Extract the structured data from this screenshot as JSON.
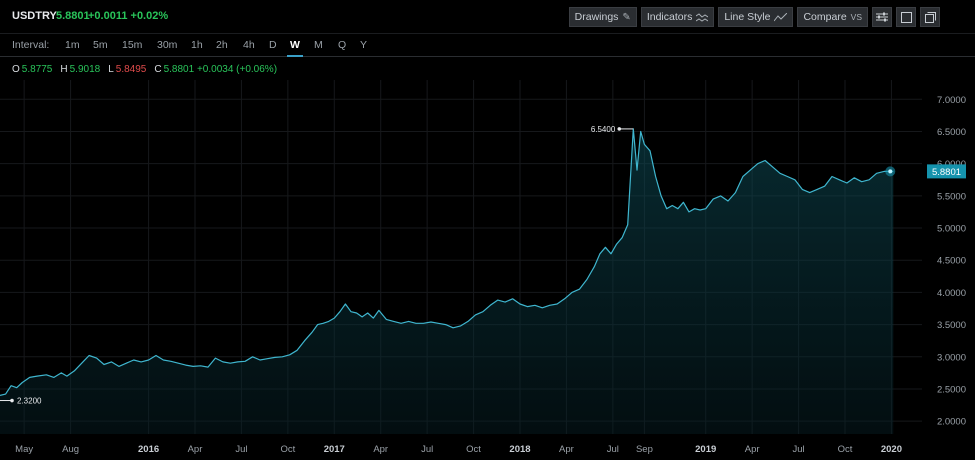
{
  "header": {
    "symbol": "USDTRY",
    "price": "5.8801",
    "change": "+0.0011 +0.02%",
    "buttons": {
      "drawings": "Drawings",
      "indicators": "Indicators",
      "line_style": "Line Style",
      "compare": "Compare",
      "compare_suffix": "VS"
    }
  },
  "intervals": {
    "label": "Interval:",
    "items": [
      "1m",
      "5m",
      "15m",
      "30m",
      "1h",
      "2h",
      "4h",
      "D",
      "W",
      "M",
      "Q",
      "Y"
    ],
    "active": "W"
  },
  "ohlc": {
    "o_label": "O",
    "o": "5.8775",
    "h_label": "H",
    "h": "5.9018",
    "l_label": "L",
    "l": "5.8495",
    "c_label": "C",
    "c": "5.8801",
    "change": "+0.0034 (+0.06%)"
  },
  "colors": {
    "line": "#3fb6cf",
    "price_tag": "#1593ad",
    "up": "#29c45a",
    "down": "#e04b4b"
  },
  "chart_data": {
    "type": "area",
    "series": [
      {
        "values": [
          [
            2015.2,
            2.4
          ],
          [
            2015.23,
            2.42
          ],
          [
            2015.26,
            2.55
          ],
          [
            2015.29,
            2.52
          ],
          [
            2015.32,
            2.6
          ],
          [
            2015.36,
            2.68
          ],
          [
            2015.4,
            2.7
          ],
          [
            2015.45,
            2.72
          ],
          [
            2015.49,
            2.68
          ],
          [
            2015.53,
            2.75
          ],
          [
            2015.56,
            2.7
          ],
          [
            2015.6,
            2.78
          ],
          [
            2015.64,
            2.9
          ],
          [
            2015.68,
            3.02
          ],
          [
            2015.72,
            2.98
          ],
          [
            2015.76,
            2.88
          ],
          [
            2015.8,
            2.92
          ],
          [
            2015.84,
            2.85
          ],
          [
            2015.88,
            2.9
          ],
          [
            2015.92,
            2.95
          ],
          [
            2015.96,
            2.92
          ],
          [
            2016.0,
            2.95
          ],
          [
            2016.04,
            3.02
          ],
          [
            2016.08,
            2.95
          ],
          [
            2016.12,
            2.93
          ],
          [
            2016.16,
            2.9
          ],
          [
            2016.2,
            2.87
          ],
          [
            2016.24,
            2.85
          ],
          [
            2016.28,
            2.86
          ],
          [
            2016.32,
            2.84
          ],
          [
            2016.36,
            2.98
          ],
          [
            2016.4,
            2.92
          ],
          [
            2016.44,
            2.9
          ],
          [
            2016.48,
            2.92
          ],
          [
            2016.52,
            2.93
          ],
          [
            2016.56,
            3.0
          ],
          [
            2016.6,
            2.95
          ],
          [
            2016.64,
            2.97
          ],
          [
            2016.68,
            2.99
          ],
          [
            2016.72,
            3.0
          ],
          [
            2016.76,
            3.03
          ],
          [
            2016.8,
            3.1
          ],
          [
            2016.84,
            3.25
          ],
          [
            2016.88,
            3.38
          ],
          [
            2016.91,
            3.5
          ],
          [
            2016.94,
            3.52
          ],
          [
            2016.97,
            3.55
          ],
          [
            2017.0,
            3.6
          ],
          [
            2017.03,
            3.7
          ],
          [
            2017.06,
            3.82
          ],
          [
            2017.09,
            3.7
          ],
          [
            2017.12,
            3.68
          ],
          [
            2017.15,
            3.62
          ],
          [
            2017.18,
            3.68
          ],
          [
            2017.21,
            3.6
          ],
          [
            2017.24,
            3.72
          ],
          [
            2017.28,
            3.58
          ],
          [
            2017.32,
            3.55
          ],
          [
            2017.36,
            3.52
          ],
          [
            2017.4,
            3.55
          ],
          [
            2017.44,
            3.52
          ],
          [
            2017.48,
            3.52
          ],
          [
            2017.52,
            3.54
          ],
          [
            2017.56,
            3.52
          ],
          [
            2017.6,
            3.5
          ],
          [
            2017.64,
            3.45
          ],
          [
            2017.68,
            3.48
          ],
          [
            2017.72,
            3.55
          ],
          [
            2017.76,
            3.65
          ],
          [
            2017.8,
            3.7
          ],
          [
            2017.84,
            3.8
          ],
          [
            2017.88,
            3.88
          ],
          [
            2017.92,
            3.85
          ],
          [
            2017.96,
            3.9
          ],
          [
            2018.0,
            3.82
          ],
          [
            2018.04,
            3.78
          ],
          [
            2018.08,
            3.8
          ],
          [
            2018.12,
            3.76
          ],
          [
            2018.16,
            3.8
          ],
          [
            2018.2,
            3.82
          ],
          [
            2018.24,
            3.9
          ],
          [
            2018.28,
            4.0
          ],
          [
            2018.32,
            4.05
          ],
          [
            2018.36,
            4.2
          ],
          [
            2018.4,
            4.4
          ],
          [
            2018.43,
            4.6
          ],
          [
            2018.46,
            4.7
          ],
          [
            2018.49,
            4.6
          ],
          [
            2018.52,
            4.75
          ],
          [
            2018.55,
            4.85
          ],
          [
            2018.58,
            5.05
          ],
          [
            2018.61,
            6.54
          ],
          [
            2018.63,
            5.9
          ],
          [
            2018.65,
            6.5
          ],
          [
            2018.67,
            6.3
          ],
          [
            2018.7,
            6.2
          ],
          [
            2018.73,
            5.8
          ],
          [
            2018.76,
            5.5
          ],
          [
            2018.79,
            5.3
          ],
          [
            2018.82,
            5.35
          ],
          [
            2018.85,
            5.3
          ],
          [
            2018.88,
            5.4
          ],
          [
            2018.91,
            5.25
          ],
          [
            2018.94,
            5.3
          ],
          [
            2018.97,
            5.28
          ],
          [
            2019.0,
            5.3
          ],
          [
            2019.04,
            5.45
          ],
          [
            2019.08,
            5.5
          ],
          [
            2019.12,
            5.42
          ],
          [
            2019.16,
            5.55
          ],
          [
            2019.2,
            5.8
          ],
          [
            2019.24,
            5.9
          ],
          [
            2019.28,
            6.0
          ],
          [
            2019.32,
            6.05
          ],
          [
            2019.36,
            5.95
          ],
          [
            2019.4,
            5.85
          ],
          [
            2019.44,
            5.8
          ],
          [
            2019.48,
            5.75
          ],
          [
            2019.52,
            5.6
          ],
          [
            2019.56,
            5.55
          ],
          [
            2019.6,
            5.6
          ],
          [
            2019.64,
            5.65
          ],
          [
            2019.68,
            5.8
          ],
          [
            2019.72,
            5.75
          ],
          [
            2019.76,
            5.7
          ],
          [
            2019.8,
            5.78
          ],
          [
            2019.84,
            5.72
          ],
          [
            2019.88,
            5.75
          ],
          [
            2019.92,
            5.85
          ],
          [
            2019.96,
            5.88
          ],
          [
            2020.01,
            5.88
          ]
        ]
      }
    ],
    "ylim": [
      1.8,
      7.3
    ],
    "xlim": [
      2015.2,
      2020.1
    ],
    "yticks": [
      {
        "value": 2.0,
        "label": "2.0000"
      },
      {
        "value": 2.5,
        "label": "2.5000"
      },
      {
        "value": 3.0,
        "label": "3.0000"
      },
      {
        "value": 3.5,
        "label": "3.5000"
      },
      {
        "value": 4.0,
        "label": "4.0000"
      },
      {
        "value": 4.5,
        "label": "4.5000"
      },
      {
        "value": 5.0,
        "label": "5.0000"
      },
      {
        "value": 5.5,
        "label": "5.5000"
      },
      {
        "value": 6.0,
        "label": "6.0000"
      },
      {
        "value": 6.5,
        "label": "6.5000"
      },
      {
        "value": 7.0,
        "label": "7.0000"
      }
    ],
    "xticks": [
      {
        "value": 2015.33,
        "label": "May",
        "bold": false
      },
      {
        "value": 2015.58,
        "label": "Aug",
        "bold": false
      },
      {
        "value": 2016.0,
        "label": "2016",
        "bold": true
      },
      {
        "value": 2016.25,
        "label": "Apr",
        "bold": false
      },
      {
        "value": 2016.5,
        "label": "Jul",
        "bold": false
      },
      {
        "value": 2016.75,
        "label": "Oct",
        "bold": false
      },
      {
        "value": 2017.0,
        "label": "2017",
        "bold": true
      },
      {
        "value": 2017.25,
        "label": "Apr",
        "bold": false
      },
      {
        "value": 2017.5,
        "label": "Jul",
        "bold": false
      },
      {
        "value": 2017.75,
        "label": "Oct",
        "bold": false
      },
      {
        "value": 2018.0,
        "label": "2018",
        "bold": true
      },
      {
        "value": 2018.25,
        "label": "Apr",
        "bold": false
      },
      {
        "value": 2018.5,
        "label": "Jul",
        "bold": false
      },
      {
        "value": 2018.67,
        "label": "Sep",
        "bold": false
      },
      {
        "value": 2019.0,
        "label": "2019",
        "bold": true
      },
      {
        "value": 2019.25,
        "label": "Apr",
        "bold": false
      },
      {
        "value": 2019.5,
        "label": "Jul",
        "bold": false
      },
      {
        "value": 2019.75,
        "label": "Oct",
        "bold": false
      },
      {
        "value": 2020.0,
        "label": "2020",
        "bold": true
      }
    ],
    "annotations": [
      {
        "label": "6.5400",
        "x": 2018.61,
        "y": 6.54,
        "side": "left"
      },
      {
        "label": "2.3200",
        "x": 2015.2,
        "y": 2.32,
        "side": "right"
      }
    ],
    "last_price": {
      "label": "5.8801",
      "value": 5.8801
    },
    "grid": true
  }
}
